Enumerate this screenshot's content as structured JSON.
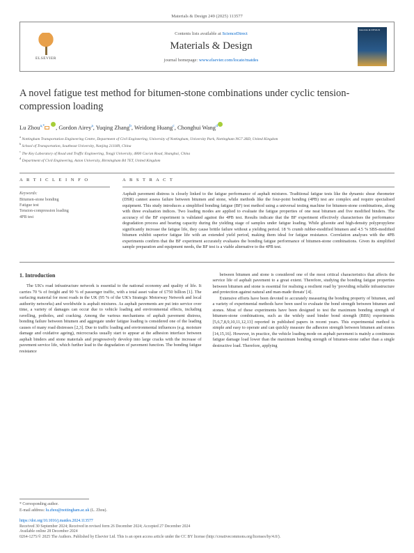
{
  "header": {
    "citation": "Materials & Design 249 (2025) 113577",
    "contents_prefix": "Contents lists available at ",
    "contents_link": "ScienceDirect",
    "journal": "Materials & Design",
    "homepage_prefix": "journal homepage: ",
    "homepage_link": "www.elsevier.com/locate/matdes",
    "publisher": "ELSEVIER"
  },
  "title": "A novel fatigue test method for bitumen-stone combinations under cyclic tension-compression loading",
  "authors_html": "Lu Zhou",
  "authors": [
    {
      "name": "Lu Zhou",
      "sup": "a,*",
      "orcid": true,
      "mail": true
    },
    {
      "name": "Gordon Airey",
      "sup": "a"
    },
    {
      "name": "Yuqing Zhang",
      "sup": "b"
    },
    {
      "name": "Weidong Huang",
      "sup": "c"
    },
    {
      "name": "Chonghui Wang",
      "sup": "d",
      "orcid": true
    }
  ],
  "affiliations": [
    {
      "sup": "a",
      "text": "Nottingham Transportation Engineering Centre, Department of Civil Engineering, University of Nottingham, University Park, Nottingham NG7 2RD, United Kingdom"
    },
    {
      "sup": "b",
      "text": "School of Transportation, Southeast University, Nanjing 211189, China"
    },
    {
      "sup": "c",
      "text": "The Key Laboratory of Road and Traffic Engineering, Tongji University, 4800 Cao'an Road, Shanghai, China"
    },
    {
      "sup": "d",
      "text": "Department of Civil Engineering, Aston University, Birmingham B4 7ET, United Kingdom"
    }
  ],
  "info": {
    "article_info": "A R T I C L E  I N F O",
    "abstract_label": "A B S T R A C T",
    "keywords_label": "Keywords:",
    "keywords": "Bitumen-stone bonding\nFatigue test\nTension-compression loading\n4PB test"
  },
  "abstract": "Asphalt pavement distress is closely linked to the fatigue performance of asphalt mixtures. Traditional fatigue tests like the dynamic shear rheometer (DSR) cannot assess failure between bitumen and stone, while methods like the four-point bending (4PB) test are complex and require specialised equipment. This study introduces a simplified bonding fatigue (BF) test method using a universal testing machine for bitumen-stone combinations, along with three evaluation indices. Two loading modes are applied to evaluate the fatigue properties of one neat bitumen and five modified binders. The accuracy of the BF experiment is validated against the 4PB test. Results indicate that the BF experiment effectively characterises the performance degradation process and bearing capacity during the yielding stage of samples under fatigue loading. While gilsonite and high-density polypropylene significantly increase the fatigue life, they cause brittle failure without a yielding period. 18 % crumb rubber-modified bitumen and 4.5 % SBS-modified bitumen exhibit superior fatigue life with an extended yield period, making them ideal for fatigue resistance. Correlation analyses with the 4PB experiments confirm that the BF experiment accurately evaluates the bonding fatigue performance of bitumen-stone combinations. Given its simplified sample preparation and equipment needs, the BF test is a viable alternative to the 4PB test.",
  "section1": {
    "heading": "1. Introduction",
    "p1": "The UK's road infrastructure network is essential to the national economy and quality of life. It carries 70 % of freight and 90 % of passenger traffic, with a total asset value of £750 billion [1]. The surfacing material for most roads in the UK (95 % of the UK's Strategic Motorway Network and local authority networks) and worldwide is asphalt mixtures. As asphalt pavements are put into service over time, a variety of damages can occur due to vehicle loading and environmental effects, including ravelling, potholes, and cracking. Among the various mechanisms of asphalt pavement distress, bonding failure between bitumen and aggregate under fatigue loading is considered one of the leading causes of many road distresses [2,3]. Due to traffic loading and environmental influences (e.g. moisture damage and oxidative ageing), microcracks usually start to appear at the adhesion interface between asphalt binders and stone materials and progressively develop into large cracks with the increase of pavement service life, which further lead to the degradation of pavement function. The bonding fatigue resistance",
    "p2": "between bitumen and stone is considered one of the most critical characteristics that affects the service life of asphalt pavement to a great extent. Therefore, studying the bonding fatigue properties between bitumen and stone is essential for realising a resilient road by 'providing reliable infrastructure and protection against natural and man-made threats' [4].",
    "p3": "Extensive efforts have been devoted to accurately measuring the bonding property of bitumen, and a variety of experimental methods have been used to evaluate the bond strength between bitumen and stones. Most of these experiments have been designed to test the maximum bonding strength of bitumen-stone combinations, such as the widely used binder bond strength (BBS) experiments [5,6,7,8,9,10,11,12,13] reported in published papers in recent years. This experimental method is simple and easy to operate and can quickly measure the adhesion strength between bitumen and stones [14,15,16]. However, in practice, the vehicle loading mode on asphalt pavement is mainly a continuous fatigue damage load lower than the maximum bonding strength of bitumen-stone rather than a single destructive load. Therefore, applying"
  },
  "footer": {
    "corresponding": "* Corresponding author.",
    "email_label": "E-mail address: ",
    "email": "lu.zhou@nottingham.ac.uk",
    "email_suffix": " (L. Zhou).",
    "doi": "https://doi.org/10.1016/j.matdes.2024.113577",
    "received": "Received 30 September 2024; Received in revised form 26 December 2024; Accepted 27 December 2024",
    "available": "Available online 28 December 2024",
    "copyright": "0264-1275/© 2025 The Authors. Published by Elsevier Ltd. This is an open access article under the CC BY license (http://creativecommons.org/licenses/by/4.0/)."
  }
}
